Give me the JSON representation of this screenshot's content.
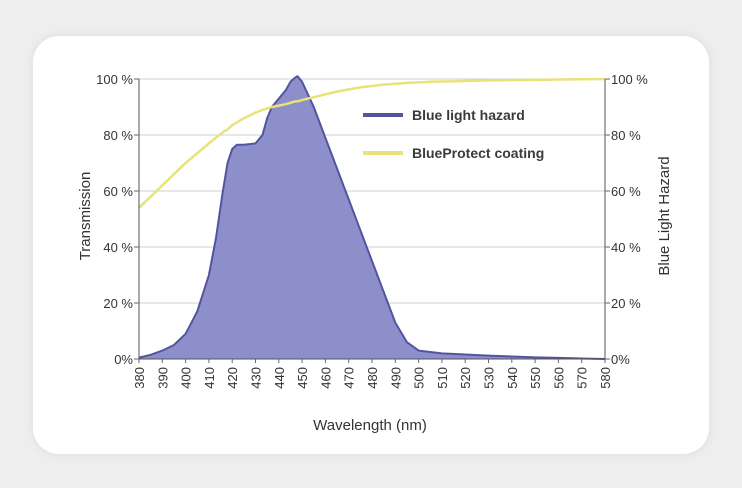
{
  "chart_data": {
    "type": "area",
    "x": [
      380,
      385,
      390,
      395,
      400,
      405,
      410,
      413,
      416,
      418,
      420,
      422,
      425,
      430,
      433,
      435,
      437,
      440,
      443,
      445,
      447,
      448,
      450,
      455,
      460,
      465,
      470,
      475,
      480,
      485,
      490,
      495,
      500,
      505,
      510,
      520,
      530,
      540,
      550,
      560,
      570,
      580
    ],
    "xlabel": "Wavelength (nm)",
    "xlim": [
      380,
      580
    ],
    "xticks": [
      "380",
      "390",
      "400",
      "410",
      "420",
      "430",
      "440",
      "450",
      "460",
      "470",
      "480",
      "490",
      "500",
      "510",
      "520",
      "530",
      "540",
      "550",
      "560",
      "570",
      "580"
    ],
    "ylabel_left": "Transmission",
    "ylabel_right": "Blue Light Hazard",
    "ylim": [
      0,
      100
    ],
    "yticks_left": [
      "0%",
      "20 %",
      "40 %",
      "60 %",
      "80 %",
      "100 %"
    ],
    "yticks_right": [
      "0%",
      "20 %",
      "40 %",
      "60 %",
      "80 %",
      "100 %"
    ],
    "series": [
      {
        "name": "Blue light hazard",
        "kind": "area",
        "color": "#52559e",
        "fill": "#8d8fcb",
        "values": [
          0.5,
          1.5,
          3,
          5,
          9,
          17,
          30,
          43,
          60,
          70,
          75,
          76.5,
          76.5,
          77,
          80,
          86,
          90,
          93,
          96,
          99,
          100.5,
          101,
          99,
          90,
          79,
          68,
          57,
          46,
          35,
          24,
          13,
          6,
          3,
          2.5,
          2,
          1.6,
          1.2,
          0.9,
          0.6,
          0.4,
          0.2,
          0
        ]
      },
      {
        "name": "BlueProtect coating",
        "kind": "line",
        "color": "#e8e27a",
        "values": [
          54,
          58,
          62,
          66,
          70,
          73.5,
          77,
          79,
          81,
          82,
          83.5,
          84.5,
          86,
          88,
          89,
          89.5,
          90,
          90.5,
          91,
          91.5,
          92,
          92,
          92.5,
          93.5,
          94.5,
          95.5,
          96.3,
          97,
          97.5,
          98,
          98.3,
          98.6,
          98.8,
          99,
          99.1,
          99.3,
          99.5,
          99.6,
          99.7,
          99.8,
          99.9,
          100
        ]
      }
    ],
    "legend": "top-right inside plot"
  }
}
